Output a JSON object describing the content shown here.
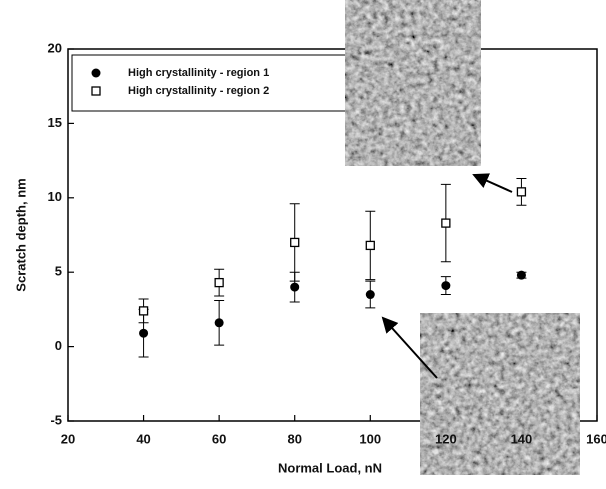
{
  "chart_data": {
    "type": "scatter",
    "x_label": "Normal Load, nN",
    "y_label": "Scratch depth, nm",
    "x": [
      40,
      60,
      80,
      100,
      120,
      140
    ],
    "series": [
      {
        "name": "High crystallinity - region 1",
        "color": "#000000",
        "marker": "circle",
        "values": [
          0.9,
          1.6,
          4.0,
          3.5,
          4.1,
          4.8
        ],
        "errors": [
          1.6,
          1.5,
          1.0,
          0.9,
          0.6,
          0.2
        ]
      },
      {
        "name": "High crystallinity - region 2",
        "color": "#000000",
        "marker": "square",
        "values": [
          2.4,
          4.3,
          7.0,
          6.8,
          8.3,
          10.4
        ],
        "errors": [
          0.8,
          0.9,
          2.6,
          2.3,
          2.6,
          0.9
        ]
      }
    ],
    "xlim": [
      20,
      160
    ],
    "xticks": [
      20,
      40,
      60,
      80,
      100,
      120,
      140,
      160
    ],
    "ylim": [
      -5,
      20
    ],
    "yticks": [
      -5,
      0,
      5,
      10,
      15,
      20
    ]
  }
}
